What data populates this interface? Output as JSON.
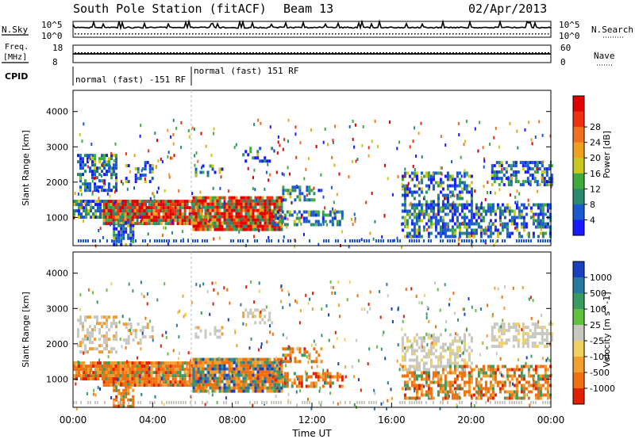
{
  "header": {
    "station": "South Pole Station (fitACF)",
    "beam": "Beam 13",
    "date": "02/Apr/2013"
  },
  "top_panels": {
    "nsky_label": "N.Sky",
    "nsearch_label": "N.Search",
    "nsky_ticks": [
      "10^5",
      "10^0"
    ],
    "freq_label": "Freq.",
    "freq_unit": "[MHz]",
    "freq_ticks": [
      "18",
      "8"
    ],
    "nave_label": "Nave",
    "nave_ticks": [
      "60",
      "0"
    ],
    "cpid_label": "CPID",
    "cpid_segments": [
      {
        "label": "normal (fast) -151 RF",
        "start_hour": 0,
        "end_hour": 6
      },
      {
        "label": "normal (fast) 151 RF",
        "start_hour": 6,
        "end_hour": 24
      }
    ]
  },
  "chart_data": [
    {
      "type": "heatmap",
      "name": "power",
      "ylabel": "Slant Range [km]",
      "ylim": [
        200,
        4600
      ],
      "yticks": [
        1000,
        2000,
        3000,
        4000
      ],
      "xlim": [
        0,
        24
      ],
      "colorbar": {
        "label": "Power [dB]",
        "ticks": [
          "4",
          "8",
          "12",
          "16",
          "20",
          "24",
          "28"
        ],
        "colors": [
          "#1a1aff",
          "#1a5ad0",
          "#2a8a70",
          "#40aa40",
          "#c8c820",
          "#f0a020",
          "#f07020",
          "#f03010",
          "#e00000"
        ]
      }
    },
    {
      "type": "heatmap",
      "name": "velocity",
      "ylabel": "Slant Range [km]",
      "ylim": [
        200,
        4600
      ],
      "yticks": [
        1000,
        2000,
        3000,
        4000
      ],
      "xlim": [
        0,
        24
      ],
      "xlabel": "Time UT",
      "xticks": [
        "00:00",
        "04:00",
        "08:00",
        "12:00",
        "16:00",
        "20:00",
        "00:00"
      ],
      "colorbar": {
        "label": "Velocity [m s^-1]",
        "ticks": [
          "1000",
          "500",
          "100",
          "25",
          "-25",
          "-100",
          "-500",
          "-1000"
        ],
        "colors": [
          "#1a40c0",
          "#2a7aa0",
          "#3a9a60",
          "#60c040",
          "#c8c8c0",
          "#f0d060",
          "#f0a030",
          "#f07010",
          "#e02000"
        ]
      }
    }
  ]
}
